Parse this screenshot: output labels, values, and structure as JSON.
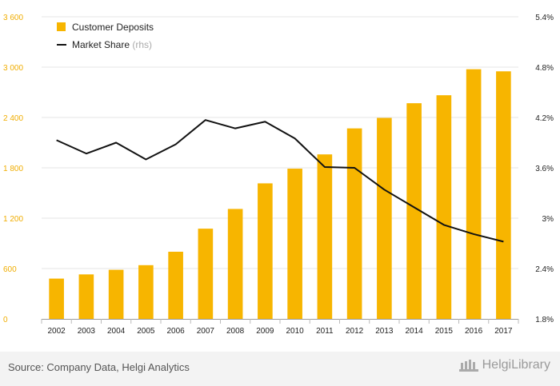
{
  "chart_data": {
    "type": "bar",
    "categories": [
      "2002",
      "2003",
      "2004",
      "2005",
      "2006",
      "2007",
      "2008",
      "2009",
      "2010",
      "2011",
      "2012",
      "2013",
      "2014",
      "2015",
      "2016",
      "2017"
    ],
    "series": [
      {
        "name": "Customer Deposits",
        "type": "bar",
        "axis": "left",
        "color": "#f7b500",
        "values": [
          480,
          530,
          585,
          640,
          800,
          1075,
          1310,
          1615,
          1790,
          1960,
          2270,
          2395,
          2570,
          2665,
          2975,
          2950
        ]
      },
      {
        "name": "Market Share",
        "legend_suffix": "(rhs)",
        "type": "line",
        "axis": "right",
        "color": "#111111",
        "values": [
          3.93,
          3.77,
          3.9,
          3.7,
          3.88,
          4.17,
          4.07,
          4.15,
          3.95,
          3.61,
          3.6,
          3.34,
          3.13,
          2.92,
          2.81,
          2.72
        ]
      }
    ],
    "y_left": {
      "min": 0,
      "max": 3600,
      "ticks": [
        0,
        600,
        1200,
        1800,
        2400,
        3000,
        3600
      ],
      "tick_labels": [
        "0",
        "600",
        "1 200",
        "1 800",
        "2 400",
        "3 000",
        "3 600"
      ]
    },
    "y_right": {
      "min": 1.8,
      "max": 5.4,
      "ticks": [
        1.8,
        2.4,
        3.0,
        3.6,
        4.2,
        4.8,
        5.4
      ],
      "tick_labels": [
        "1.8%",
        "2.4%",
        "3%",
        "3.6%",
        "4.2%",
        "4.8%",
        "5.4%"
      ]
    },
    "grid": true,
    "legend_position": "top-left"
  },
  "footer": {
    "source": "Source: Company Data, Helgi Analytics",
    "logo_text": "HelgiLibrary"
  }
}
